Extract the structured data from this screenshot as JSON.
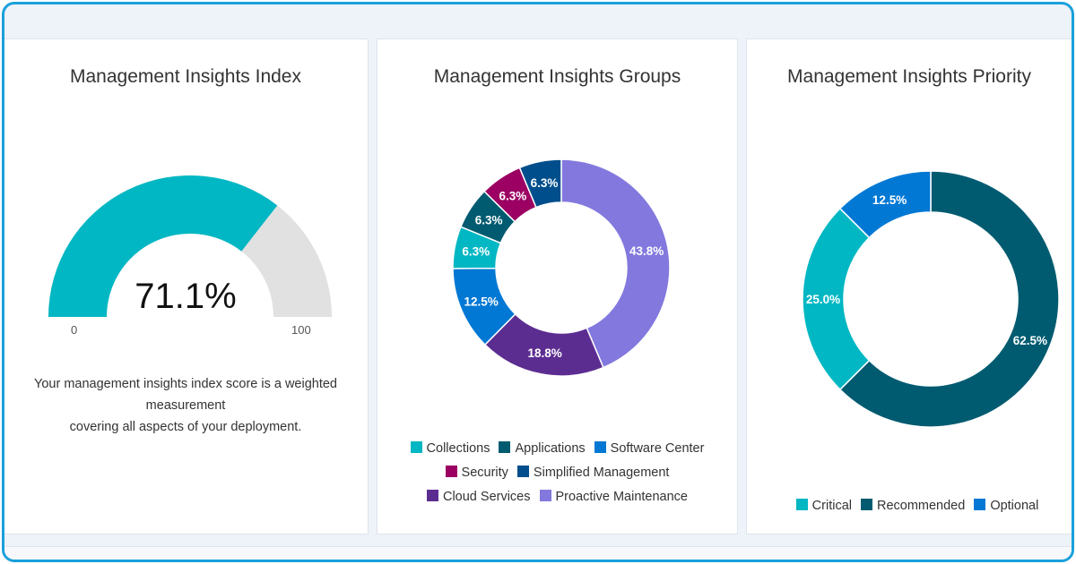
{
  "gauge": {
    "title": "Management Insights Index",
    "value": 71.1,
    "value_label": "71.1%",
    "min_label": "0",
    "max_label": "100",
    "min": 0,
    "max": 100,
    "description_line1": "Your management insights index score is a weighted measurement",
    "description_line2": "covering all aspects of your deployment.",
    "fill_color": "#00b7c3",
    "track_color": "#e1e1e1"
  },
  "groups": {
    "title": "Management Insights Groups",
    "legend": [
      [
        "Collections",
        "Applications",
        "Software Center"
      ],
      [
        "Security",
        "Simplified Management"
      ],
      [
        "Cloud Services",
        "Proactive Maintenance"
      ]
    ]
  },
  "priority": {
    "title": "Management Insights Priority"
  },
  "chart_data": [
    {
      "type": "pie",
      "variant": "gauge",
      "title": "Management Insights Index",
      "value": 71.1,
      "range": [
        0,
        100
      ]
    },
    {
      "type": "pie",
      "variant": "donut",
      "title": "Management Insights Groups",
      "series": [
        {
          "name": "Proactive Maintenance",
          "value": 43.8,
          "label": "43.8%",
          "color": "#8378de"
        },
        {
          "name": "Cloud Services",
          "value": 18.8,
          "label": "18.8%",
          "color": "#5c2d91"
        },
        {
          "name": "Software Center",
          "value": 12.5,
          "label": "12.5%",
          "color": "#0078d4"
        },
        {
          "name": "Collections",
          "value": 6.3,
          "label": "6.3%",
          "color": "#00b7c3"
        },
        {
          "name": "Applications",
          "value": 6.3,
          "label": "6.3%",
          "color": "#005b70"
        },
        {
          "name": "Security",
          "value": 6.3,
          "label": "6.3%",
          "color": "#9b0062"
        },
        {
          "name": "Simplified Management",
          "value": 6.3,
          "label": "6.3%",
          "color": "#004e8c"
        }
      ]
    },
    {
      "type": "pie",
      "variant": "donut",
      "title": "Management Insights Priority",
      "series": [
        {
          "name": "Recommended",
          "value": 62.5,
          "label": "62.5%",
          "color": "#005b70"
        },
        {
          "name": "Critical",
          "value": 25.0,
          "label": "25.0%",
          "color": "#00b7c3"
        },
        {
          "name": "Optional",
          "value": 12.5,
          "label": "12.5%",
          "color": "#0078d4"
        }
      ],
      "legend": [
        "Critical",
        "Recommended",
        "Optional"
      ]
    }
  ]
}
